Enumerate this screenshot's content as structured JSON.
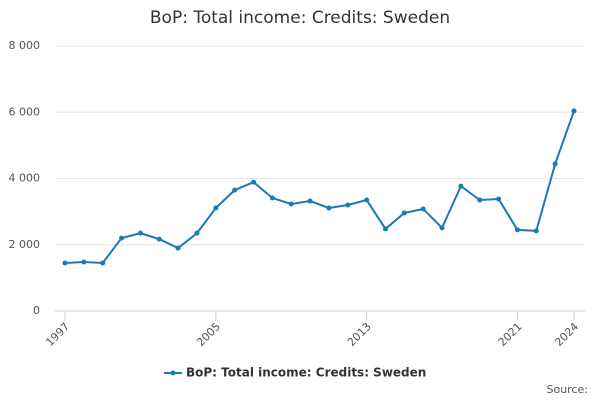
{
  "chart_data": {
    "type": "line",
    "title": "BoP: Total income: Credits: Sweden",
    "x": [
      1997,
      1998,
      1999,
      2000,
      2001,
      2002,
      2003,
      2004,
      2005,
      2006,
      2007,
      2008,
      2009,
      2010,
      2011,
      2012,
      2013,
      2014,
      2015,
      2016,
      2017,
      2018,
      2019,
      2020,
      2021,
      2022,
      2023,
      2024
    ],
    "series": [
      {
        "name": "BoP: Total income: Credits: Sweden",
        "color": "#1a7ab5",
        "values": [
          1450,
          1480,
          1450,
          2200,
          2350,
          2170,
          1900,
          2350,
          3110,
          3650,
          3890,
          3410,
          3230,
          3320,
          3110,
          3200,
          3350,
          2480,
          2960,
          3080,
          2510,
          3770,
          3350,
          3380,
          2450,
          2420,
          4440,
          6040
        ]
      }
    ],
    "xlim": [
      1997,
      2024
    ],
    "xticks": [
      1997,
      2005,
      2013,
      2021,
      2024
    ],
    "ylim": [
      0,
      8000
    ],
    "yticks": [
      0,
      {
        "value": 2000,
        "label": "2 000"
      },
      {
        "value": 4000,
        "label": "4 000"
      },
      {
        "value": 6000,
        "label": "6 000"
      },
      {
        "value": 8000,
        "label": "8 000"
      }
    ],
    "grid": true,
    "legend": "bottom",
    "source_label": "Source:"
  }
}
